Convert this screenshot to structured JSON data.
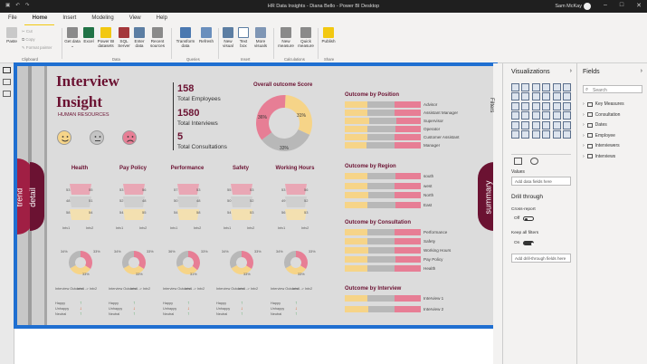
{
  "window": {
    "title": "HR Data Insights - Diana Bello - Power BI Desktop",
    "user": "Sam McKay"
  },
  "menu": [
    "File",
    "Home",
    "Insert",
    "Modeling",
    "View",
    "Help"
  ],
  "ribbon": {
    "clipboard": {
      "paste": "Paste",
      "cut": "Cut",
      "copy": "Copy",
      "format_painter": "Format painter",
      "group": "Clipboard"
    },
    "data_buttons": [
      {
        "label": "Get data",
        "chev": "⌄"
      },
      {
        "label": "Excel"
      },
      {
        "label": "Power BI datasets"
      },
      {
        "label": "SQL Server"
      },
      {
        "label": "Enter data"
      },
      {
        "label": "Recent sources",
        "chev": "⌄"
      }
    ],
    "data_group": "Data",
    "queries": [
      {
        "label": "Transform data"
      },
      {
        "label": "Refresh"
      }
    ],
    "queries_group": "Queries",
    "insert": [
      {
        "label": "New visual"
      },
      {
        "label": "Text box"
      },
      {
        "label": "More visuals"
      }
    ],
    "insert_group": "Insert",
    "calc": [
      {
        "label": "New measure"
      },
      {
        "label": "Quick measure"
      }
    ],
    "calc_group": "Calculations",
    "share": [
      {
        "label": "Publish"
      }
    ],
    "share_group": "Share"
  },
  "report": {
    "title_line1": "Interview",
    "title_line2": "Insight",
    "subtitle": "HUMAN RESOURCES",
    "side_tabs": {
      "trend": "trend",
      "detail": "detail",
      "summary": "summary"
    },
    "kpis": [
      {
        "value": "158",
        "label": "Total Employees"
      },
      {
        "value": "1580",
        "label": "Total Interviews"
      },
      {
        "value": "5",
        "label": "Total Consultations"
      }
    ],
    "overall": {
      "title": "Overall outcome Score",
      "slices": [
        {
          "label": "31%",
          "value": 31,
          "color": "#f6d488"
        },
        {
          "label": "33%",
          "value": 33,
          "color": "#b8b8b8"
        },
        {
          "label": "36%",
          "value": 36,
          "color": "#e77e95"
        }
      ]
    },
    "position": {
      "title": "Outcome by Position",
      "rows": [
        {
          "label": "Advisor",
          "a": 0.3,
          "b": 0.36,
          "c": 0.34
        },
        {
          "label": "Assistant Manager",
          "a": 0.3,
          "b": 0.36,
          "c": 0.34
        },
        {
          "label": "Supervisor",
          "a": 0.32,
          "b": 0.36,
          "c": 0.32
        },
        {
          "label": "Operator",
          "a": 0.3,
          "b": 0.37,
          "c": 0.33
        },
        {
          "label": "Customer Assistant",
          "a": 0.3,
          "b": 0.36,
          "c": 0.34
        },
        {
          "label": "Manager",
          "a": 0.28,
          "b": 0.38,
          "c": 0.34
        }
      ]
    },
    "region": {
      "title": "Outcome by Region",
      "rows": [
        {
          "label": "south",
          "a": 0.3,
          "b": 0.37,
          "c": 0.33
        },
        {
          "label": "west",
          "a": 0.3,
          "b": 0.36,
          "c": 0.34
        },
        {
          "label": "North",
          "a": 0.31,
          "b": 0.35,
          "c": 0.34
        },
        {
          "label": "East",
          "a": 0.3,
          "b": 0.37,
          "c": 0.33
        }
      ]
    },
    "consultation": {
      "title": "Outcome by Consultation",
      "rows": [
        {
          "label": "Performance",
          "a": 0.3,
          "b": 0.36,
          "c": 0.34
        },
        {
          "label": "Safety",
          "a": 0.3,
          "b": 0.36,
          "c": 0.34
        },
        {
          "label": "Working Hours",
          "a": 0.31,
          "b": 0.35,
          "c": 0.34
        },
        {
          "label": "Pay Policy",
          "a": 0.3,
          "b": 0.37,
          "c": 0.33
        },
        {
          "label": "Health",
          "a": 0.3,
          "b": 0.36,
          "c": 0.34
        }
      ]
    },
    "interview": {
      "title": "Outcome by Interview",
      "rows": [
        {
          "label": "Interview 1",
          "a": 0.3,
          "b": 0.36,
          "c": 0.34
        },
        {
          "label": "Interview 2",
          "a": 0.31,
          "b": 0.35,
          "c": 0.34
        }
      ]
    },
    "categories": [
      {
        "title": "Health",
        "top": [
          "53",
          "55"
        ],
        "mid": [
          "48",
          "51"
        ],
        "bot": [
          "58",
          "54"
        ],
        "pie": [
          "34%",
          "33%",
          "33%"
        ]
      },
      {
        "title": "Pay Policy",
        "top": [
          "53",
          "56"
        ],
        "mid": [
          "52",
          "48"
        ],
        "bot": [
          "54",
          "55"
        ],
        "pie": [
          "34%",
          "33%",
          "33%"
        ]
      },
      {
        "title": "Performance",
        "top": [
          "57",
          "53"
        ],
        "mid": [
          "50",
          "48"
        ],
        "bot": [
          "54",
          "58"
        ],
        "pie": [
          "36%",
          "33%",
          "31%"
        ]
      },
      {
        "title": "Safety",
        "top": [
          "55",
          "53"
        ],
        "mid": [
          "50",
          "52"
        ],
        "bot": [
          "54",
          "53"
        ],
        "pie": [
          "34%",
          "33%",
          "33%"
        ]
      },
      {
        "title": "Working Hours",
        "top": [
          "53",
          "56"
        ],
        "mid": [
          "49",
          "52"
        ],
        "bot": [
          "56",
          "53"
        ],
        "pie": [
          "34%",
          "33%",
          "33%"
        ]
      }
    ],
    "cat_axis": [
      "Intv1",
      "Intv2"
    ],
    "cat_table": {
      "h1": "Interview Outcome",
      "h2": "Intv1 -> Intv2",
      "rows": [
        "Happy",
        "Unhappy",
        "Neutral"
      ]
    }
  },
  "visualizations": {
    "title": "Visualizations",
    "values_label": "Values",
    "add_data": "Add data fields here",
    "drill_title": "Drill through",
    "cross_report": "Cross-report",
    "cross_state": "Off",
    "keep_filters": "Keep all filters",
    "keep_state": "On",
    "add_drill": "Add drill-through fields here"
  },
  "filters": {
    "label": "Filters"
  },
  "fields": {
    "title": "Fields",
    "search": "Search",
    "tables": [
      "Key Measures",
      "Consultation",
      "Dates",
      "Employee",
      "Interviewers",
      "Interviews"
    ]
  },
  "colors": {
    "accent": "#6b1232",
    "yellow": "#f6d488",
    "grey": "#b8b8b8",
    "pink": "#e77e95",
    "selection": "#1f6fd1"
  }
}
